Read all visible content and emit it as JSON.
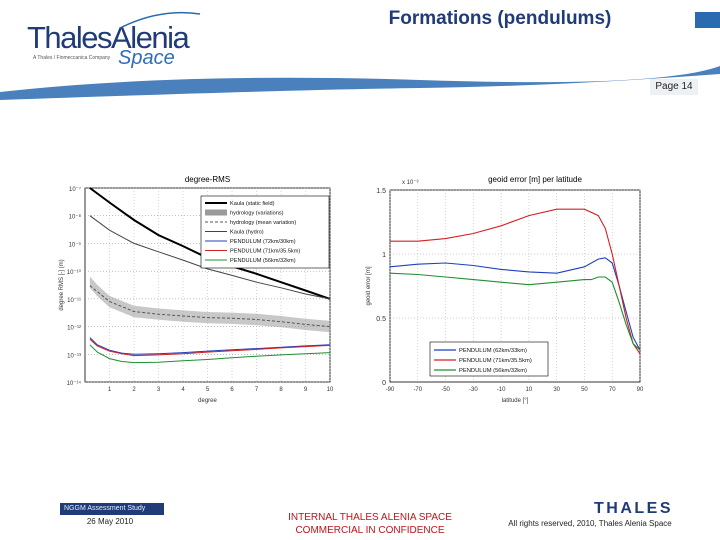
{
  "header": {
    "logo_main": "ThalesAlenia",
    "logo_sub": "A Thales / Finmeccanica Company",
    "logo_space": "Space",
    "title": "Formations (pendulums)",
    "page": "Page 14"
  },
  "footer": {
    "study": "NGGM Assessment Study",
    "date": "26 May 2010",
    "confidential_line1": "INTERNAL THALES ALENIA SPACE",
    "confidential_line2": "COMMERCIAL IN CONFIDENCE",
    "rights": "All rights reserved, 2010, Thales Alenia Space",
    "thales_logo": "THALES"
  },
  "colors": {
    "brand_blue": "#1f3c78",
    "accent_blue": "#2a6ab0",
    "confidential_red": "#c0121b"
  },
  "chart_data": [
    {
      "type": "line",
      "title": "degree-RMS",
      "xlabel": "degree",
      "ylabel": "degree RMS [-] (m)",
      "x_ticks": [
        "1",
        "2",
        "3",
        "4",
        "5",
        "6",
        "7",
        "8",
        "9",
        "10"
      ],
      "y_ticks": [
        "10⁻⁷",
        "10⁻⁸",
        "10⁻⁹",
        "10⁻¹⁰",
        "10⁻¹¹",
        "10⁻¹²",
        "10⁻¹³",
        "10⁻¹⁴"
      ],
      "y_scale": "log",
      "grid": true,
      "legend_position": "top-right",
      "series": [
        {
          "name": "Kaula (static field)",
          "color": "#000000",
          "style": "thick",
          "x": [
            0.2,
            1,
            2,
            3,
            4,
            5,
            6,
            7,
            8,
            9,
            10
          ],
          "y": [
            1e-07,
            3e-08,
            7e-09,
            2e-09,
            8e-10,
            3e-10,
            1.5e-10,
            8e-11,
            4e-11,
            2e-11,
            1e-11
          ]
        },
        {
          "name": "hydrology (variations)",
          "color": "#9a9a9a",
          "style": "band",
          "x": [
            0.2,
            0.5,
            1,
            2,
            3,
            4,
            5,
            6,
            7,
            8,
            9,
            10
          ],
          "y": [
            4e-11,
            2e-11,
            8e-12,
            3.5e-12,
            2.8e-12,
            2.4e-12,
            2.1e-12,
            2e-12,
            1.8e-12,
            1.5e-12,
            1.2e-12,
            1e-12
          ]
        },
        {
          "name": "hydrology (mean variation)",
          "color": "#555555",
          "style": "dashed",
          "x": [
            0.2,
            1,
            2,
            3,
            4,
            5,
            6,
            7,
            8,
            9,
            10
          ],
          "y": [
            3e-11,
            8e-12,
            3.5e-12,
            2.8e-12,
            2.4e-12,
            2.1e-12,
            2e-12,
            1.8e-12,
            1.5e-12,
            1.2e-12,
            1e-12
          ]
        },
        {
          "name": "Kaula (hydro)",
          "color": "#444444",
          "style": "thin",
          "x": [
            0.2,
            1,
            2,
            3,
            4,
            5,
            6,
            7,
            8,
            9,
            10
          ],
          "y": [
            1e-08,
            3e-09,
            1e-09,
            5e-10,
            2.5e-10,
            1.2e-10,
            7e-11,
            4e-11,
            2.5e-11,
            1.5e-11,
            1e-11
          ]
        },
        {
          "name": "PENDULUM (72km/30km)",
          "color": "#1f3fbf",
          "style": "solid",
          "x": [
            0.2,
            0.5,
            1,
            1.5,
            2,
            3,
            4,
            5,
            6,
            7,
            8,
            9,
            10
          ],
          "y": [
            4e-13,
            2.2e-13,
            1.4e-13,
            1.1e-13,
            1e-13,
            1.05e-13,
            1.15e-13,
            1.3e-13,
            1.45e-13,
            1.6e-13,
            1.8e-13,
            2e-13,
            2.2e-13
          ]
        },
        {
          "name": "PENDULUM (71km/35.5km)",
          "color": "#d42020",
          "style": "solid",
          "x": [
            0.2,
            0.5,
            1,
            1.5,
            2,
            3,
            4,
            5,
            6,
            7,
            8,
            9,
            10
          ],
          "y": [
            3.5e-13,
            2e-13,
            1.3e-13,
            1.05e-13,
            9e-14,
            9.5e-14,
            1.05e-13,
            1.2e-13,
            1.35e-13,
            1.5e-13,
            1.7e-13,
            1.9e-13,
            2.1e-13
          ]
        },
        {
          "name": "PENDULUM (56km/32km)",
          "color": "#1f8f2f",
          "style": "solid",
          "x": [
            0.2,
            0.5,
            1,
            1.5,
            2,
            3,
            4,
            5,
            6,
            7,
            8,
            9,
            10
          ],
          "y": [
            2.2e-13,
            1.2e-13,
            7e-14,
            5.5e-14,
            5e-14,
            5.2e-14,
            5.8e-14,
            6.5e-14,
            7.5e-14,
            8.5e-14,
            9.5e-14,
            1.05e-13,
            1.15e-13
          ]
        }
      ]
    },
    {
      "type": "line",
      "title": "geoid error [m] per latitude",
      "xlabel": "latitude [°]",
      "ylabel": "geoid error [m]",
      "y_multiplier": "x 10⁻³",
      "x_ticks": [
        "-90",
        "-70",
        "-50",
        "-30",
        "-10",
        "10",
        "30",
        "50",
        "70",
        "90"
      ],
      "y_ticks": [
        "1.5",
        "1",
        "0.5",
        "0"
      ],
      "xlim": [
        -90,
        90
      ],
      "ylim": [
        0,
        1.5
      ],
      "grid": true,
      "legend_position": "bottom-right",
      "series": [
        {
          "name": "PENDULUM (62km/33km)",
          "color": "#1f3fbf",
          "x": [
            -90,
            -70,
            -50,
            -30,
            -10,
            10,
            30,
            50,
            60,
            65,
            70,
            75,
            80,
            85,
            90
          ],
          "y": [
            0.9,
            0.92,
            0.93,
            0.91,
            0.88,
            0.86,
            0.85,
            0.9,
            0.96,
            0.97,
            0.93,
            0.75,
            0.55,
            0.35,
            0.25
          ]
        },
        {
          "name": "PENDULUM (71km/35.5km)",
          "color": "#d42020",
          "x": [
            -90,
            -70,
            -50,
            -30,
            -10,
            10,
            30,
            50,
            60,
            65,
            70,
            75,
            80,
            85,
            90
          ],
          "y": [
            1.1,
            1.1,
            1.12,
            1.16,
            1.22,
            1.3,
            1.35,
            1.35,
            1.3,
            1.2,
            1.0,
            0.75,
            0.5,
            0.3,
            0.22
          ]
        },
        {
          "name": "PENDULUM (56km/32km)",
          "color": "#1f8f2f",
          "x": [
            -90,
            -70,
            -50,
            -30,
            -10,
            10,
            30,
            50,
            55,
            60,
            65,
            70,
            75,
            80,
            85,
            90
          ],
          "y": [
            0.85,
            0.84,
            0.82,
            0.8,
            0.78,
            0.76,
            0.78,
            0.8,
            0.8,
            0.82,
            0.82,
            0.78,
            0.62,
            0.45,
            0.3,
            0.25
          ]
        }
      ]
    }
  ]
}
